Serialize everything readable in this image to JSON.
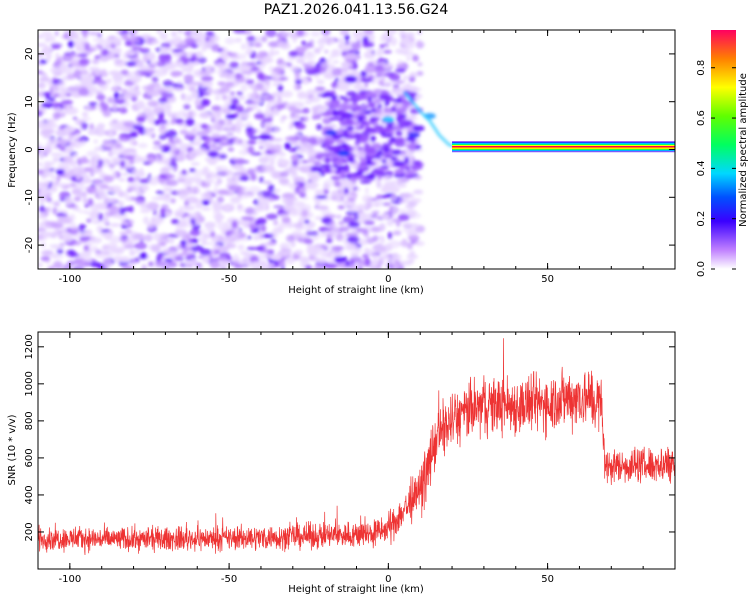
{
  "title": "PAZ1.2026.041.13.56.G24",
  "chart_data": [
    {
      "type": "heatmap",
      "xlabel": "Height of straight line (km)",
      "ylabel": "Frequency (Hz)",
      "xlim": [
        -110,
        90
      ],
      "ylim": [
        -25,
        25
      ],
      "xticks": [
        -100,
        -50,
        0,
        50
      ],
      "xtick_labels": [
        "-100",
        "-50",
        "0",
        "50"
      ],
      "yticks": [
        -20,
        -10,
        0,
        10,
        20
      ],
      "ytick_labels": [
        "-20",
        "-10",
        "0",
        "10",
        "20"
      ],
      "colorbar": {
        "label": "Normalized spectral amplitude",
        "range": [
          0,
          0.95
        ],
        "ticks": [
          0.0,
          0.2,
          0.4,
          0.6,
          0.8
        ],
        "tick_labels": [
          "0.0",
          "0.2",
          "0.4",
          "0.6",
          "0.8"
        ]
      },
      "features": {
        "noise_region_km": [
          -110,
          10
        ],
        "transition_curve": [
          [
            5,
            12
          ],
          [
            10,
            8
          ],
          [
            13,
            6
          ],
          [
            16,
            3
          ],
          [
            19,
            1
          ],
          [
            21,
            0.6
          ]
        ],
        "tone_band": {
          "x_from": 20,
          "x_to": 90,
          "freq_hz": 0.6,
          "amplitude": 0.95
        }
      }
    },
    {
      "type": "line",
      "xlabel": "Height of straight line (km)",
      "ylabel": "SNR (10 * v/v)",
      "xlim": [
        -110,
        90
      ],
      "ylim": [
        0,
        1280
      ],
      "xticks": [
        -100,
        -50,
        0,
        50
      ],
      "xtick_labels": [
        "-100",
        "-50",
        "0",
        "50"
      ],
      "yticks": [
        200,
        400,
        600,
        800,
        1000,
        1200
      ],
      "ytick_labels": [
        "200",
        "400",
        "600",
        "800",
        "1000",
        "1200"
      ],
      "color": "#ee3333",
      "series": [
        {
          "name": "SNR",
          "x": [
            -110,
            -80,
            -50,
            -20,
            -5,
            0,
            5,
            10,
            12,
            15,
            17,
            20,
            25,
            30,
            35,
            40,
            45,
            50,
            55,
            60,
            63,
            66,
            67,
            68,
            70,
            75,
            80,
            85,
            90
          ],
          "y": [
            165,
            160,
            165,
            180,
            190,
            215,
            320,
            420,
            520,
            700,
            750,
            800,
            850,
            880,
            890,
            880,
            890,
            900,
            920,
            930,
            920,
            900,
            870,
            560,
            555,
            560,
            560,
            565,
            580
          ],
          "noise_amplitude": [
            55,
            55,
            55,
            60,
            65,
            70,
            90,
            110,
            120,
            130,
            130,
            130,
            135,
            135,
            135,
            135,
            135,
            140,
            140,
            140,
            140,
            140,
            130,
            85,
            80,
            80,
            80,
            85,
            90
          ]
        }
      ]
    }
  ]
}
